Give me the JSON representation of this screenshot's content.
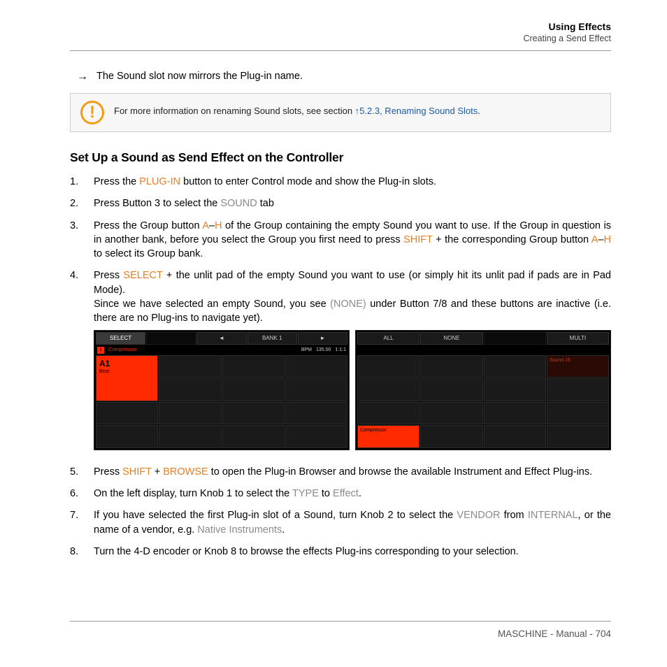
{
  "header": {
    "title": "Using Effects",
    "subtitle": "Creating a Send Effect"
  },
  "arrow_line": "The Sound slot now mirrors the Plug-in name.",
  "callout": {
    "text_before": "For more information on renaming Sound slots, see section ",
    "link": "↑5.2.3, Renaming Sound Slots",
    "text_after": "."
  },
  "section_heading": "Set Up a Sound as Send Effect on the Controller",
  "steps": {
    "s1": {
      "a": "Press the ",
      "hl1": "PLUG-IN",
      "b": " button to enter Control mode and show the Plug-in slots."
    },
    "s2": {
      "a": "Press Button 3 to select the ",
      "g1": "SOUND",
      "b": " tab"
    },
    "s3": {
      "a": "Press the Group button ",
      "hl1": "A",
      "b": "–",
      "hl2": "H",
      "c": " of the Group containing the empty Sound you want to use. If the Group in question is in another bank, before you select the Group you first need to press ",
      "hl3": "SHIFT",
      "d": " + the corresponding Group button ",
      "hl4": "A",
      "e": "–",
      "hl5": "H",
      "f": " to select its Group bank."
    },
    "s4": {
      "a": "Press ",
      "hl1": "SELECT",
      "b": " + the unlit pad of the empty Sound you want to use (or simply hit its unlit pad if pads are in Pad Mode).",
      "br": "Since we have selected an empty Sound, you see ",
      "g1": "(NONE)",
      "c": " under Button 7/8 and these buttons are inactive (i.e. there are no Plug-ins to navigate yet)."
    },
    "s5": {
      "a": "Press ",
      "hl1": "SHIFT",
      "b": " + ",
      "hl2": "BROWSE",
      "c": " to open the Plug-in Browser and browse the available Instrument and Effect Plug-ins."
    },
    "s6": {
      "a": "On the left display, turn Knob 1 to select the ",
      "g1": "TYPE",
      "b": " to ",
      "g2": "Effect",
      "c": "."
    },
    "s7": {
      "a": "If you have selected the first Plug-in slot of a Sound, turn Knob 2 to select the ",
      "g1": "VENDOR",
      "b": " from ",
      "g2": "INTERNAL",
      "c": ", or the name of a vendor, e.g. ",
      "g3": "Native Instruments",
      "d": "."
    },
    "s8": {
      "a": "Turn the 4-D encoder or Knob 8 to browse the effects Plug-ins corresponding to your selection."
    }
  },
  "controller": {
    "left": {
      "buttons": {
        "b1": "SELECT",
        "b2": "◄",
        "b3": "BANK 1",
        "b4": "►"
      },
      "info": {
        "num": "1",
        "name": "Compressor",
        "bpm_label": "BPM",
        "bpm": "135.00",
        "pos": "1:1:1"
      },
      "a1": {
        "label": "A1",
        "sub": "Beat"
      }
    },
    "right": {
      "buttons": {
        "b1": "ALL",
        "b2": "NONE",
        "b3": "MULTI"
      },
      "sound16": "Sound 16",
      "compressor": "Compressor"
    }
  },
  "footer": "MASCHINE - Manual - 704",
  "colors": {
    "highlight": "#e67e22",
    "gray": "#8a8a8a",
    "link": "#1b5aa6",
    "accent_red": "#ff2a00"
  }
}
